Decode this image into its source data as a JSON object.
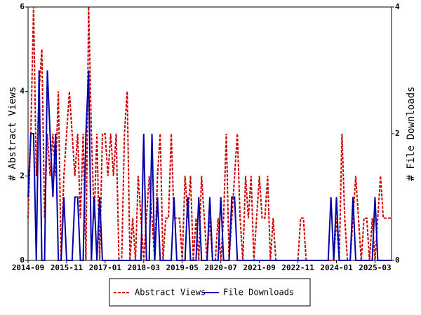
{
  "chart_data": {
    "type": "line",
    "x": [
      "2014-09",
      null,
      null,
      null,
      null,
      null,
      null,
      null,
      null,
      null,
      null,
      null,
      null,
      null,
      "2015-11",
      null,
      null,
      null,
      null,
      null,
      null,
      null,
      null,
      null,
      null,
      null,
      null,
      null,
      "2017-01",
      null,
      null,
      null,
      null,
      null,
      null,
      null,
      null,
      null,
      null,
      null,
      null,
      null,
      "2018-03",
      null,
      null,
      null,
      null,
      null,
      null,
      null,
      null,
      null,
      null,
      null,
      null,
      null,
      "2019-05",
      null,
      null,
      null,
      null,
      null,
      null,
      null,
      null,
      null,
      null,
      null,
      null,
      null,
      "2020-07",
      null,
      null,
      null,
      null,
      null,
      null,
      null,
      null,
      null,
      null,
      null,
      null,
      null,
      "2021-09",
      null,
      null,
      null,
      null,
      null,
      null,
      null,
      null,
      null,
      null,
      null,
      null,
      null,
      "2022-11",
      null,
      null,
      null,
      null,
      null,
      null,
      null,
      null,
      null,
      null,
      null,
      null,
      null,
      "2024-01",
      null,
      null,
      null,
      null,
      null,
      null,
      null,
      null,
      null,
      null,
      null,
      null,
      null,
      "2025-03",
      null,
      null,
      null,
      null,
      null,
      null
    ],
    "series": [
      {
        "name": "Abstract Views",
        "color": "#cc0000",
        "dashed": true,
        "values": [
          1,
          3,
          6,
          2,
          4,
          5,
          1,
          3,
          2,
          3,
          2,
          4,
          0,
          2,
          3,
          4,
          3,
          2,
          3,
          1,
          3,
          0,
          6,
          3,
          1,
          3,
          0,
          3,
          3,
          2,
          3,
          2,
          3,
          0,
          0,
          3,
          4,
          0,
          1,
          0,
          2,
          1,
          0,
          1,
          2,
          1,
          0,
          2,
          3,
          0,
          1,
          1,
          3,
          1,
          1,
          1,
          0,
          2,
          1,
          2,
          0,
          1,
          0,
          2,
          1,
          0,
          1,
          0,
          0,
          1,
          0,
          1,
          3,
          0,
          1,
          2,
          3,
          1,
          0,
          2,
          1,
          2,
          0,
          1,
          2,
          1,
          1,
          2,
          0,
          1,
          0,
          0,
          0,
          0,
          0,
          0,
          0,
          0,
          0,
          1,
          1,
          0,
          0,
          0,
          0,
          0,
          0,
          0,
          0,
          0,
          0,
          0,
          1,
          0,
          3,
          1,
          0,
          0,
          1,
          2,
          1,
          0,
          1,
          1,
          0,
          1,
          0,
          1,
          2,
          1,
          1,
          1,
          1
        ]
      },
      {
        "name": "File Downloads",
        "color": "#0000aa",
        "axis": "y2",
        "values": [
          1,
          2,
          2,
          0,
          3,
          0,
          0,
          3,
          2,
          1,
          2,
          0,
          0,
          1,
          0,
          0,
          0,
          1,
          1,
          0,
          0,
          2,
          3,
          0,
          1,
          0,
          1,
          0,
          0,
          0,
          0,
          0,
          0,
          0,
          0,
          0,
          0,
          0,
          0,
          0,
          0,
          0,
          2,
          0,
          0,
          2,
          0,
          1,
          0,
          0,
          0,
          0,
          0,
          1,
          0,
          0,
          0,
          0,
          1,
          0,
          0,
          0,
          1,
          0,
          0,
          0,
          1,
          0,
          0,
          0,
          1,
          0,
          0,
          0,
          1,
          1,
          0,
          0,
          0,
          0,
          0,
          0,
          0,
          0,
          0,
          0,
          0,
          0,
          0,
          0,
          0,
          0,
          0,
          0,
          0,
          0,
          0,
          0,
          0,
          0,
          0,
          0,
          0,
          0,
          0,
          0,
          0,
          0,
          0,
          0,
          1,
          0,
          1,
          0,
          0,
          0,
          0,
          0,
          1,
          0,
          0,
          0,
          0,
          0,
          0,
          0,
          1,
          0,
          0,
          0,
          0,
          0,
          0
        ]
      }
    ],
    "ylabel": "# Abstract Views",
    "y2label": "# File Downloads",
    "ylim": [
      0,
      6
    ],
    "yticks": [
      0,
      2,
      4,
      6
    ],
    "y2lim": [
      0,
      4
    ],
    "y2ticks": [
      0,
      2,
      4
    ],
    "legend": "bottom"
  }
}
